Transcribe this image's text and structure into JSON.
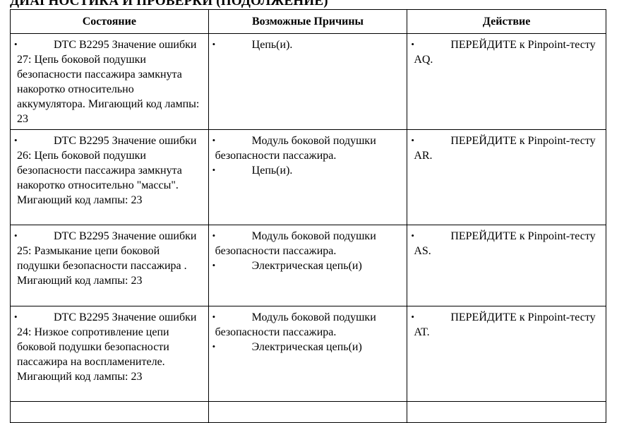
{
  "heading": "ДИАГНОСТИКА И ПРОВЕРКИ (ПОДОЛЖЕНИЕ)",
  "columns": [
    "Состояние",
    "Возможные Причины",
    "Действие"
  ],
  "rows": [
    {
      "condition": "DTC B2295 Значение ошибки 27: Цепь боковой подушки безопасности пассажира замкнута  накоротко относительно аккумулятора. Мигающий код лампы: 23",
      "causes": [
        "Цепь(и)."
      ],
      "action": "ПЕРЕЙДИТЕ к Pinpoint-тесту AQ."
    },
    {
      "condition": "DTC B2295 Значение ошибки 26: Цепь боковой подушки безопасности пассажира замкнута  накоротко относительно \"массы\". Мигающий код лампы: 23",
      "causes": [
        "Модуль боковой подушки безопасности  пассажира.",
        "Цепь(и)."
      ],
      "action": "ПЕРЕЙДИТЕ к Pinpoint-тесту AR."
    },
    {
      "condition": "DTC B2295 Значение ошибки 25: Размыкание  цепи боковой подушки безопасности пассажира .   Мигающий код лампы: 23",
      "causes": [
        "Модуль боковой подушки безопасности  пассажира.",
        "Электрическая цепь(и)"
      ],
      "action": "ПЕРЕЙДИТЕ к Pinpoint-тесту AS."
    },
    {
      "condition": "DTC B2295 Значение ошибки 24: Низкое сопротивление цепи боковой подушки  безопасности пассажира на воспламенителе. Мигающий код лампы: 23",
      "causes": [
        "Модуль боковой подушки безопасности  пассажира.",
        "Электрическая цепь(и)"
      ],
      "action": "ПЕРЕЙДИТЕ к Pinpoint-тесту AT."
    }
  ],
  "bullet": "•"
}
